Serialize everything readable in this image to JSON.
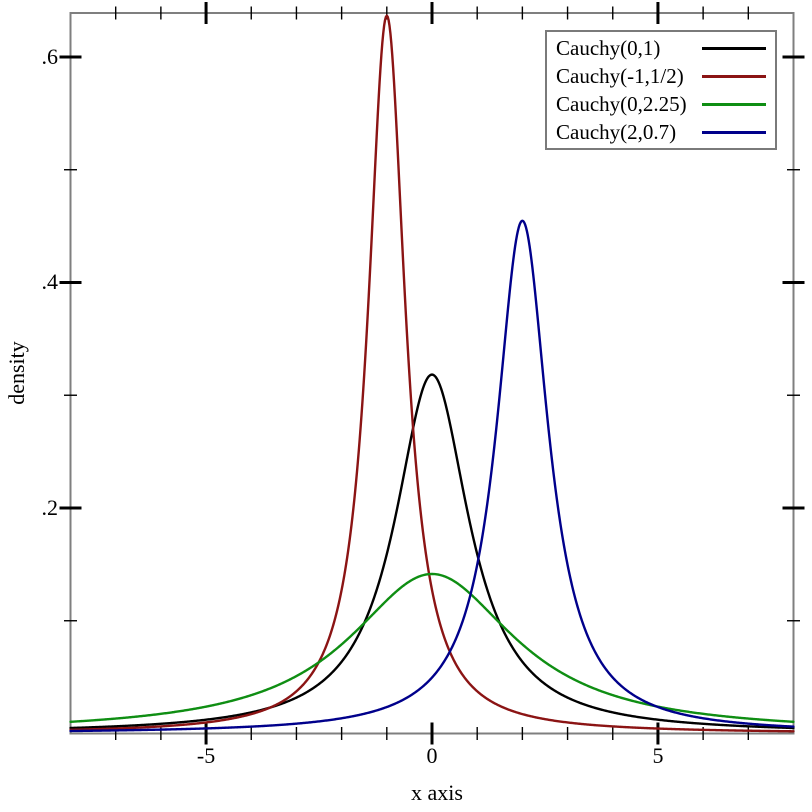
{
  "chart_data": {
    "type": "line",
    "title": "",
    "xlabel": "x axis",
    "ylabel": "density",
    "xlim": [
      -8,
      8
    ],
    "ylim": [
      0,
      0.639
    ],
    "grid": false,
    "legend_position": "top-right",
    "frame_color": "#7f7f7f",
    "tick_color": "#000000",
    "x_major_ticks": [
      {
        "value": -5,
        "label": "-5"
      },
      {
        "value": 0,
        "label": "0"
      },
      {
        "value": 5,
        "label": "5"
      }
    ],
    "x_minor_ticks": [
      -7,
      -6,
      -4,
      -3,
      -2,
      -1,
      1,
      2,
      3,
      4,
      6,
      7
    ],
    "y_major_ticks": [
      {
        "value": 0.2,
        "label": ".2"
      },
      {
        "value": 0.4,
        "label": ".4"
      },
      {
        "value": 0.6,
        "label": ".6"
      }
    ],
    "y_minor_ticks": [
      0.1,
      0.3,
      0.5
    ],
    "distribution": "cauchy_pdf",
    "series": [
      {
        "name": "Cauchy(0,1)",
        "color": "#000000",
        "location": 0,
        "scale": 1,
        "peak_x": 0,
        "peak_y": 0.3183
      },
      {
        "name": "Cauchy(-1,1/2)",
        "color": "#8b1414",
        "location": -1,
        "scale": 0.5,
        "peak_x": -1,
        "peak_y": 0.6366
      },
      {
        "name": "Cauchy(0,2.25)",
        "color": "#0f8e13",
        "location": 0,
        "scale": 2.25,
        "peak_x": 0,
        "peak_y": 0.1415
      },
      {
        "name": "Cauchy(2,0.7)",
        "color": "#00008b",
        "location": 2,
        "scale": 0.7,
        "peak_x": 2,
        "peak_y": 0.4547
      }
    ]
  }
}
